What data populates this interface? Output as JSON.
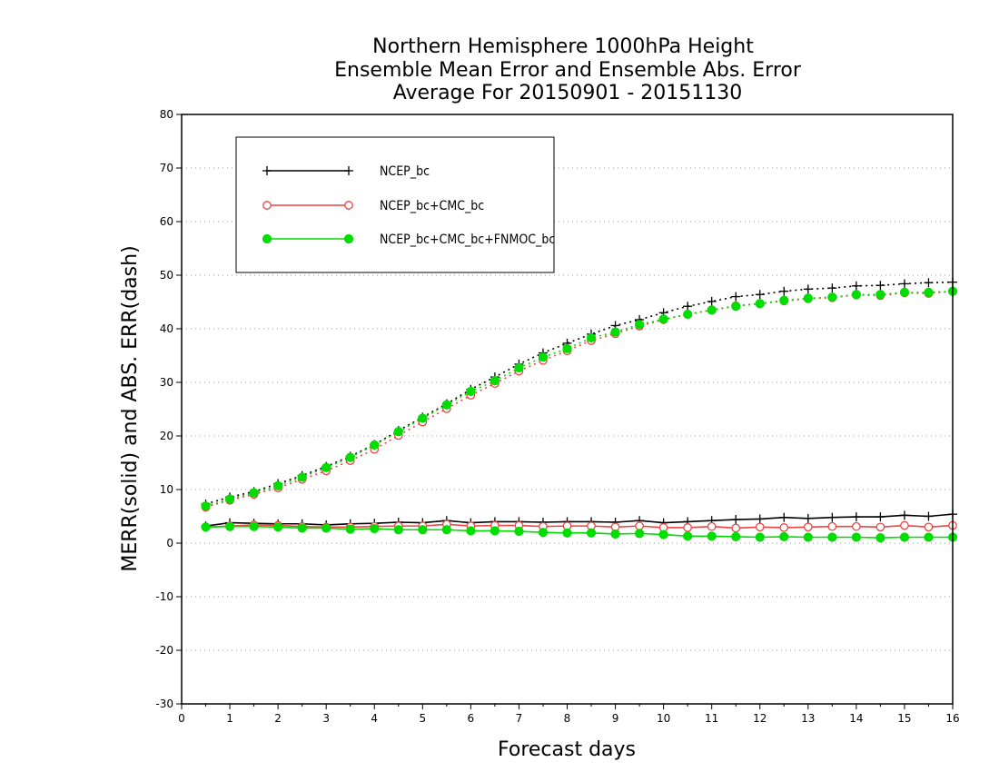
{
  "chart_data": {
    "type": "line",
    "title_lines": [
      "Northern Hemisphere 1000hPa Height",
      "Ensemble Mean Error and Ensemble Abs. Error",
      "Average For 20150901 - 20151130"
    ],
    "xlabel": "Forecast days",
    "ylabel": "MERR(solid) and ABS. ERR(dash)",
    "xlim": [
      0,
      16
    ],
    "ylim": [
      -30,
      80
    ],
    "xticks": [
      0,
      1,
      2,
      3,
      4,
      5,
      6,
      7,
      8,
      9,
      10,
      11,
      12,
      13,
      14,
      15,
      16
    ],
    "yticks": [
      -30,
      -20,
      -10,
      0,
      10,
      20,
      30,
      40,
      50,
      60,
      70,
      80
    ],
    "grid": "horizontal-dotted",
    "legend_placement": "top-left",
    "x": [
      0.5,
      1,
      1.5,
      2,
      2.5,
      3,
      3.5,
      4,
      4.5,
      5,
      5.5,
      6,
      6.5,
      7,
      7.5,
      8,
      8.5,
      9,
      9.5,
      10,
      10.5,
      11,
      11.5,
      12,
      12.5,
      13,
      13.5,
      14,
      14.5,
      15,
      15.5,
      16
    ],
    "series": [
      {
        "name": "NCEP_bc",
        "color": "#000000",
        "marker": "plus",
        "merr": [
          3.2,
          3.8,
          3.7,
          3.6,
          3.6,
          3.4,
          3.6,
          3.7,
          3.9,
          3.8,
          4.2,
          3.8,
          4.0,
          4.0,
          3.9,
          4.0,
          4.0,
          3.9,
          4.2,
          3.8,
          4.0,
          4.2,
          4.4,
          4.5,
          4.8,
          4.6,
          4.8,
          4.9,
          4.9,
          5.2,
          5.0,
          5.4
        ],
        "abs_err": [
          7.3,
          8.6,
          9.6,
          11.1,
          12.6,
          14.3,
          16.2,
          18.4,
          21.0,
          23.5,
          26.0,
          28.7,
          31.0,
          33.4,
          35.5,
          37.3,
          39.0,
          40.6,
          41.7,
          43.0,
          44.2,
          45.1,
          46.0,
          46.4,
          47.0,
          47.4,
          47.6,
          48.0,
          48.1,
          48.4,
          48.6,
          48.7
        ]
      },
      {
        "name": "NCEP_bc+CMC_bc",
        "color": "#ee4444",
        "marker": "open-circle",
        "merr": [
          3.0,
          3.2,
          3.4,
          3.3,
          3.1,
          3.0,
          3.0,
          3.1,
          3.2,
          3.2,
          3.5,
          3.2,
          3.3,
          3.3,
          3.1,
          3.2,
          3.2,
          3.0,
          3.2,
          2.9,
          2.9,
          3.1,
          2.8,
          3.0,
          2.9,
          3.0,
          3.1,
          3.1,
          3.0,
          3.3,
          3.0,
          3.3
        ],
        "abs_err": [
          6.7,
          8.0,
          9.1,
          10.3,
          11.9,
          13.5,
          15.4,
          17.5,
          20.1,
          22.6,
          25.1,
          27.6,
          29.8,
          32.1,
          34.1,
          35.9,
          37.8,
          39.1,
          40.5,
          41.7,
          42.7,
          43.5,
          44.3,
          44.7,
          45.2,
          45.6,
          45.8,
          46.3,
          46.2,
          46.7,
          46.6,
          47.0
        ]
      },
      {
        "name": "NCEP_bc+CMC_bc+FNMOC_bc",
        "color": "#00dd00",
        "marker": "filled-circle",
        "merr": [
          3.0,
          3.1,
          3.1,
          3.0,
          2.8,
          2.8,
          2.6,
          2.7,
          2.5,
          2.5,
          2.5,
          2.3,
          2.3,
          2.2,
          2.0,
          1.9,
          1.9,
          1.7,
          1.8,
          1.6,
          1.3,
          1.3,
          1.2,
          1.1,
          1.2,
          1.1,
          1.1,
          1.1,
          1.0,
          1.1,
          1.1,
          1.1
        ],
        "abs_err": [
          6.9,
          8.2,
          9.4,
          10.7,
          12.3,
          14.1,
          16.0,
          18.3,
          20.8,
          23.3,
          25.8,
          28.3,
          30.3,
          32.7,
          34.7,
          36.3,
          38.3,
          39.4,
          40.8,
          41.8,
          42.7,
          43.5,
          44.2,
          44.7,
          45.3,
          45.7,
          45.9,
          46.4,
          46.4,
          46.8,
          46.8,
          47.0
        ]
      }
    ]
  }
}
